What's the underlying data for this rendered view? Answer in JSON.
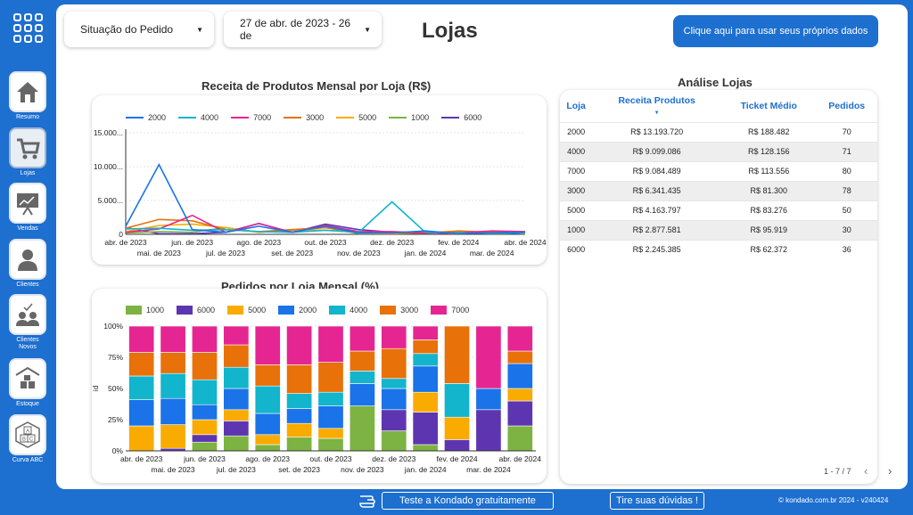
{
  "header": {
    "filter_status": "Situação do Pedido",
    "filter_date": "27 de abr. de 2023 - 26 de",
    "title": "Lojas",
    "cta": "Clique aqui para usar seus próprios dados"
  },
  "sidebar": {
    "items": [
      {
        "label": "Resumo",
        "icon": "house-icon"
      },
      {
        "label": "Lojas",
        "icon": "cart-icon"
      },
      {
        "label": "Vendas",
        "icon": "presentation-icon"
      },
      {
        "label": "Clientes",
        "icon": "user-icon"
      },
      {
        "label": "Clientes Novos",
        "icon": "new-clients-icon"
      },
      {
        "label": "Estoque",
        "icon": "warehouse-icon"
      },
      {
        "label": "Curva ABC",
        "icon": "abc-icon"
      }
    ]
  },
  "colors": {
    "2000": "#1a73e8",
    "4000": "#12b5cb",
    "7000": "#e52592",
    "3000": "#e8710a",
    "5000": "#f9ab00",
    "1000": "#7cb342",
    "6000": "#5e35b1"
  },
  "table": {
    "title": "Análise Lojas",
    "columns": [
      "Loja",
      "Receita Produtos",
      "Ticket Médio",
      "Pedidos"
    ],
    "rows": [
      [
        "2000",
        "R$ 13.193.720",
        "R$ 188.482",
        "70"
      ],
      [
        "4000",
        "R$ 9.099.086",
        "R$ 128.156",
        "71"
      ],
      [
        "7000",
        "R$ 9.084.489",
        "R$ 113.556",
        "80"
      ],
      [
        "3000",
        "R$ 6.341.435",
        "R$ 81.300",
        "78"
      ],
      [
        "5000",
        "R$ 4.163.797",
        "R$ 83.276",
        "50"
      ],
      [
        "1000",
        "R$ 2.877.581",
        "R$ 95.919",
        "30"
      ],
      [
        "6000",
        "R$ 2.245.385",
        "R$ 62.372",
        "36"
      ]
    ],
    "pagination": "1 - 7 / 7"
  },
  "footer": {
    "trial": "Teste a Kondado gratuitamente",
    "doubts": "Tire suas dúvidas !",
    "copyright": "© kondado.com.br 2024 - v240424"
  },
  "chart_data": [
    {
      "type": "line",
      "title": "Receita de Produtos Mensal por Loja (R$)",
      "x": [
        "abr. de 2023",
        "mai. de 2023",
        "jun. de 2023",
        "jul. de 2023",
        "ago. de 2023",
        "set. de 2023",
        "out. de 2023",
        "nov. de 2023",
        "dez. de 2023",
        "jan. de 2024",
        "fev. de 2024",
        "mar. de 2024",
        "abr. de 2024"
      ],
      "yticks": [
        "0",
        "5.000...",
        "10.000...",
        "15.000..."
      ],
      "ylim": [
        0,
        15000
      ],
      "series": [
        {
          "name": "2000",
          "values": [
            1200,
            10300,
            700,
            300,
            1200,
            300,
            1200,
            200,
            200,
            500,
            100,
            200,
            300
          ]
        },
        {
          "name": "4000",
          "values": [
            800,
            900,
            600,
            700,
            400,
            300,
            600,
            300,
            4800,
            300,
            200,
            100,
            200
          ]
        },
        {
          "name": "7000",
          "values": [
            300,
            800,
            2800,
            300,
            1600,
            300,
            1300,
            400,
            400,
            200,
            200,
            500,
            400
          ]
        },
        {
          "name": "3000",
          "values": [
            900,
            2200,
            2000,
            700,
            400,
            700,
            1000,
            300,
            200,
            200,
            500,
            300,
            300
          ]
        },
        {
          "name": "5000",
          "values": [
            400,
            1300,
            1500,
            1000,
            300,
            700,
            600,
            300,
            100,
            300,
            100,
            400,
            100
          ]
        },
        {
          "name": "1000",
          "values": [
            200,
            400,
            300,
            1000,
            300,
            600,
            1000,
            100,
            100,
            200,
            300,
            100,
            200
          ]
        },
        {
          "name": "6000",
          "values": [
            1000,
            100,
            100,
            300,
            1600,
            300,
            1500,
            700,
            300,
            300,
            100,
            300,
            100
          ]
        }
      ]
    },
    {
      "type": "bar",
      "stacked": true,
      "title": "Pedidos por Loja Mensal (%)",
      "ylabel": "id",
      "x": [
        "abr. de 2023",
        "mai. de 2023",
        "jun. de 2023",
        "jul. de 2023",
        "ago. de 2023",
        "set. de 2023",
        "out. de 2023",
        "nov. de 2023",
        "dez. de 2023",
        "jan. de 2024",
        "fev. de 2024",
        "mar. de 2024",
        "abr. de 2024"
      ],
      "yticks": [
        "0%",
        "25%",
        "50%",
        "75%",
        "100%"
      ],
      "series": [
        {
          "name": "1000",
          "values": [
            0,
            0,
            7,
            12,
            5,
            11,
            10,
            36,
            16,
            5,
            0,
            0,
            20
          ]
        },
        {
          "name": "6000",
          "values": [
            0,
            2,
            6,
            12,
            0,
            0,
            0,
            0,
            17,
            26,
            9,
            33,
            20
          ]
        },
        {
          "name": "5000",
          "values": [
            20,
            19,
            12,
            9,
            8,
            11,
            8,
            0,
            0,
            16,
            18,
            0,
            10
          ]
        },
        {
          "name": "2000",
          "values": [
            21,
            21,
            12,
            17,
            17,
            12,
            18,
            18,
            17,
            21,
            0,
            17,
            20
          ]
        },
        {
          "name": "4000",
          "values": [
            19,
            20,
            20,
            17,
            22,
            12,
            11,
            10,
            8,
            10,
            27,
            0,
            0
          ]
        },
        {
          "name": "3000",
          "values": [
            19,
            17,
            22,
            18,
            17,
            23,
            24,
            16,
            24,
            11,
            46,
            0,
            10
          ]
        },
        {
          "name": "7000",
          "values": [
            21,
            21,
            21,
            15,
            31,
            31,
            29,
            20,
            18,
            11,
            0,
            50,
            20
          ]
        }
      ]
    }
  ]
}
